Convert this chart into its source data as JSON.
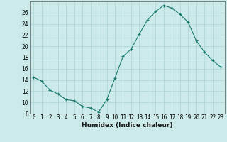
{
  "x": [
    0,
    1,
    2,
    3,
    4,
    5,
    6,
    7,
    8,
    9,
    10,
    11,
    12,
    13,
    14,
    15,
    16,
    17,
    18,
    19,
    20,
    21,
    22,
    23
  ],
  "y": [
    14.5,
    13.8,
    12.2,
    11.5,
    10.5,
    10.3,
    9.3,
    9.0,
    8.3,
    10.5,
    14.3,
    18.2,
    19.5,
    22.2,
    24.7,
    26.2,
    27.3,
    26.8,
    25.7,
    24.3,
    21.0,
    19.0,
    17.5,
    16.3
  ],
  "xlabel": "Humidex (Indice chaleur)",
  "xlim": [
    -0.5,
    23.5
  ],
  "ylim": [
    8,
    28
  ],
  "yticks": [
    8,
    10,
    12,
    14,
    16,
    18,
    20,
    22,
    24,
    26
  ],
  "xticks": [
    0,
    1,
    2,
    3,
    4,
    5,
    6,
    7,
    8,
    9,
    10,
    11,
    12,
    13,
    14,
    15,
    16,
    17,
    18,
    19,
    20,
    21,
    22,
    23
  ],
  "line_color": "#1a7a6e",
  "marker_color": "#1a7a6e",
  "bg_color": "#cceaea",
  "grid_color": "#b0d8d8",
  "xlabel_fontsize": 6.5,
  "tick_fontsize": 5.5
}
